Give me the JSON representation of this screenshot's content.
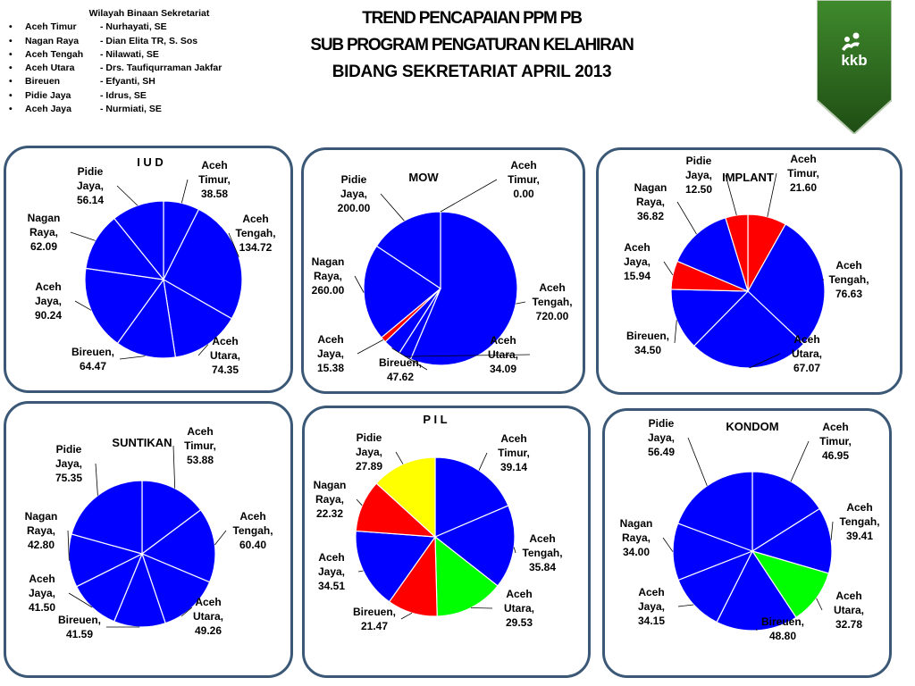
{
  "header": {
    "list_title": "Wilayah Binaan Sekretariat",
    "items": [
      {
        "region": "Aceh Timur",
        "officer": "- Nurhayati, SE"
      },
      {
        "region": "Nagan Raya",
        "officer": "- Dian Elita TR, S. Sos"
      },
      {
        "region": "Aceh Tengah",
        "officer": "-  Nilawati, SE"
      },
      {
        "region": "Aceh Utara",
        "officer": "- Drs. Taufiqurraman Jakfar"
      },
      {
        "region": "Bireuen",
        "officer": "- Efyanti, SH"
      },
      {
        "region": "Pidie Jaya",
        "officer": "- Idrus, SE"
      },
      {
        "region": "Aceh Jaya",
        "officer": "- Nurmiati, SE"
      }
    ]
  },
  "title": {
    "line1": "TREND PENCAPAIAN  PPM    PB",
    "line2": "SUB   PROGRAM  PENGATURAN    KELAHIRAN",
    "line3": "BIDANG SEKRETARIAT  APRIL 2013"
  },
  "logo": {
    "text": "kkb",
    "icon": "family-figures-icon"
  },
  "chart_data": [
    {
      "type": "pie",
      "title": "I U D",
      "slices": [
        {
          "label": "Aceh Timur, 38.58",
          "value": 38.58,
          "color": "#0000ff"
        },
        {
          "label": "Aceh Tengah, 134.72",
          "value": 134.72,
          "color": "#0000ff"
        },
        {
          "label": "Aceh Utara, 74.35",
          "value": 74.35,
          "color": "#0000ff"
        },
        {
          "label": "Bireuen, 64.47",
          "value": 64.47,
          "color": "#0000ff"
        },
        {
          "label": "Aceh Jaya, 90.24",
          "value": 90.24,
          "color": "#0000ff"
        },
        {
          "label": "Nagan Raya, 62.09",
          "value": 62.09,
          "color": "#0000ff"
        },
        {
          "label": "Pidie Jaya, 56.14",
          "value": 56.14,
          "color": "#0000ff"
        }
      ]
    },
    {
      "type": "pie",
      "title": "MOW",
      "slices": [
        {
          "label": "Aceh Timur, 0.00",
          "value": 0.0,
          "color": "#0000ff"
        },
        {
          "label": "Aceh Tengah, 720.00",
          "value": 720.0,
          "color": "#0000ff"
        },
        {
          "label": "Aceh Utara, 34.09",
          "value": 34.09,
          "color": "#0000ff"
        },
        {
          "label": "Bireuen, 47.62",
          "value": 47.62,
          "color": "#0000ff"
        },
        {
          "label": "Aceh Jaya, 15.38",
          "value": 15.38,
          "color": "#ff0000"
        },
        {
          "label": "Nagan Raya, 260.00",
          "value": 260.0,
          "color": "#0000ff"
        },
        {
          "label": "Pidie Jaya, 200.00",
          "value": 200.0,
          "color": "#0000ff"
        }
      ]
    },
    {
      "type": "pie",
      "title": "IMPLANT",
      "slices": [
        {
          "label": "Aceh Timur, 21.60",
          "value": 21.6,
          "color": "#ff0000"
        },
        {
          "label": "Aceh Tengah, 76.63",
          "value": 76.63,
          "color": "#0000ff"
        },
        {
          "label": "Aceh Utara, 67.07",
          "value": 67.07,
          "color": "#0000ff"
        },
        {
          "label": "Bireuen, 34.50",
          "value": 34.5,
          "color": "#0000ff"
        },
        {
          "label": "Aceh Jaya, 15.94",
          "value": 15.94,
          "color": "#ff0000"
        },
        {
          "label": "Nagan Raya, 36.82",
          "value": 36.82,
          "color": "#0000ff"
        },
        {
          "label": "Pidie Jaya, 12.50",
          "value": 12.5,
          "color": "#ff0000"
        }
      ]
    },
    {
      "type": "pie",
      "title": "SUNTIKAN",
      "slices": [
        {
          "label": "Aceh Timur, 53.88",
          "value": 53.88,
          "color": "#0000ff"
        },
        {
          "label": "Aceh Tengah, 60.40",
          "value": 60.4,
          "color": "#0000ff"
        },
        {
          "label": "Aceh Utara, 49.26",
          "value": 49.26,
          "color": "#0000ff"
        },
        {
          "label": "Bireuen, 41.59",
          "value": 41.59,
          "color": "#0000ff"
        },
        {
          "label": "Aceh Jaya, 41.50",
          "value": 41.5,
          "color": "#0000ff"
        },
        {
          "label": "Nagan Raya, 42.80",
          "value": 42.8,
          "color": "#0000ff"
        },
        {
          "label": "Pidie Jaya, 75.35",
          "value": 75.35,
          "color": "#0000ff"
        }
      ]
    },
    {
      "type": "pie",
      "title": "P I L",
      "slices": [
        {
          "label": "Aceh Timur, 39.14",
          "value": 39.14,
          "color": "#0000ff"
        },
        {
          "label": "Aceh Tengah, 35.84",
          "value": 35.84,
          "color": "#0000ff"
        },
        {
          "label": "Aceh Utara, 29.53",
          "value": 29.53,
          "color": "#00ff00"
        },
        {
          "label": "Bireuen, 21.47",
          "value": 21.47,
          "color": "#ff0000"
        },
        {
          "label": "Aceh Jaya, 34.51",
          "value": 34.51,
          "color": "#0000ff"
        },
        {
          "label": "Nagan Raya, 22.32",
          "value": 22.32,
          "color": "#ff0000"
        },
        {
          "label": "Pidie Jaya, 27.89",
          "value": 27.89,
          "color": "#ffff00"
        }
      ]
    },
    {
      "type": "pie",
      "title": "KONDOM",
      "slices": [
        {
          "label": "Aceh Timur, 46.95",
          "value": 46.95,
          "color": "#0000ff"
        },
        {
          "label": "Aceh Tengah, 39.41",
          "value": 39.41,
          "color": "#0000ff"
        },
        {
          "label": "Aceh Utara, 32.78",
          "value": 32.78,
          "color": "#00ff00"
        },
        {
          "label": "Bireuen, 48.80",
          "value": 48.8,
          "color": "#0000ff"
        },
        {
          "label": "Aceh Jaya, 34.15",
          "value": 34.15,
          "color": "#0000ff"
        },
        {
          "label": "Nagan Raya, 34.00",
          "value": 34.0,
          "color": "#0000ff"
        },
        {
          "label": "Pidie Jaya, 56.49",
          "value": 56.49,
          "color": "#0000ff"
        }
      ]
    }
  ]
}
